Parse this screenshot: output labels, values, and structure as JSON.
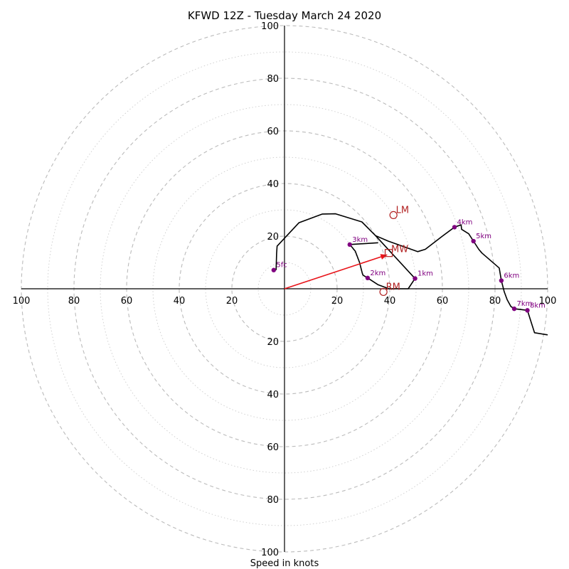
{
  "chart_data": {
    "type": "scatter",
    "title": "KFWD 12Z - Tuesday March 24 2020",
    "xlabel": "Speed in knots",
    "ring_max": 100,
    "ring_step": 20,
    "axis_tick_labels": {
      "left": [
        "100",
        "80",
        "60",
        "40",
        "20"
      ],
      "right": [
        "20",
        "40",
        "60",
        "80",
        "100"
      ],
      "top": [
        "100",
        "80",
        "60",
        "40",
        "20"
      ],
      "bottom": [
        "20",
        "40",
        "60",
        "80",
        "100"
      ]
    },
    "hodograph_trace": [
      [
        -3.2,
        7.1
      ],
      [
        -3.0,
        13.4
      ],
      [
        -2.8,
        16.2
      ],
      [
        5.5,
        25.1
      ],
      [
        14.4,
        28.4
      ],
      [
        19.4,
        28.5
      ],
      [
        29.4,
        25.4
      ],
      [
        34.6,
        20.2
      ],
      [
        39.4,
        18.1
      ],
      [
        50.6,
        14.1
      ],
      [
        53.5,
        15.0
      ],
      [
        60.0,
        20.0
      ],
      [
        64.6,
        23.4
      ],
      [
        67.1,
        24.3
      ],
      [
        67.3,
        22.6
      ],
      [
        70.0,
        20.9
      ],
      [
        71.8,
        18.1
      ],
      [
        73.8,
        15.0
      ],
      [
        75.0,
        13.6
      ],
      [
        81.6,
        7.9
      ],
      [
        82.4,
        3.1
      ],
      [
        83.5,
        -1.2
      ],
      [
        84.6,
        -4.1
      ],
      [
        86.0,
        -6.7
      ],
      [
        87.3,
        -7.6
      ],
      [
        92.3,
        -8.2
      ],
      [
        95.0,
        -16.7
      ],
      [
        100.0,
        -17.5
      ]
    ],
    "connector_segments": [
      [
        [
          24.8,
          16.8
        ],
        [
          35.6,
          17.5
        ]
      ],
      [
        [
          34.6,
          20.2
        ],
        [
          49.6,
          3.9
        ],
        [
          47.0,
          0.0
        ],
        [
          39.7,
          0.0
        ],
        [
          35.6,
          1.5
        ],
        [
          31.6,
          4.1
        ]
      ],
      [
        [
          31.6,
          4.1
        ],
        [
          29.8,
          5.2
        ],
        [
          29.5,
          6.2
        ],
        [
          28.5,
          10.1
        ],
        [
          26.9,
          14.3
        ],
        [
          24.8,
          16.8
        ]
      ]
    ],
    "height_markers": [
      {
        "label": "5fc",
        "u": -4.1,
        "v": 7.1
      },
      {
        "label": "1km",
        "u": 49.6,
        "v": 3.9
      },
      {
        "label": "2km",
        "u": 31.6,
        "v": 4.1
      },
      {
        "label": "3km",
        "u": 24.8,
        "v": 16.8
      },
      {
        "label": "4km",
        "u": 64.6,
        "v": 23.4
      },
      {
        "label": "5km",
        "u": 71.8,
        "v": 18.1
      },
      {
        "label": "6km",
        "u": 82.4,
        "v": 3.1
      },
      {
        "label": "7km",
        "u": 87.3,
        "v": -7.6
      },
      {
        "label": "8km",
        "u": 92.3,
        "v": -8.2
      }
    ],
    "storm_motion": {
      "LM": {
        "label": "LM",
        "u": 41.4,
        "v": 28.0
      },
      "MW": {
        "label": "MW",
        "u": 39.6,
        "v": 13.6
      },
      "RM": {
        "label": "RM",
        "u": 37.6,
        "v": -1.2
      }
    },
    "mean_wind_vector": {
      "u": 39.0,
      "v": 12.9
    },
    "colors": {
      "trace": "#000000",
      "marker": "#800080",
      "storm_motion": "#b22222",
      "vector": "#e8141a",
      "rings_major": "#bbbbbb",
      "rings_minor": "#cccccc"
    }
  }
}
